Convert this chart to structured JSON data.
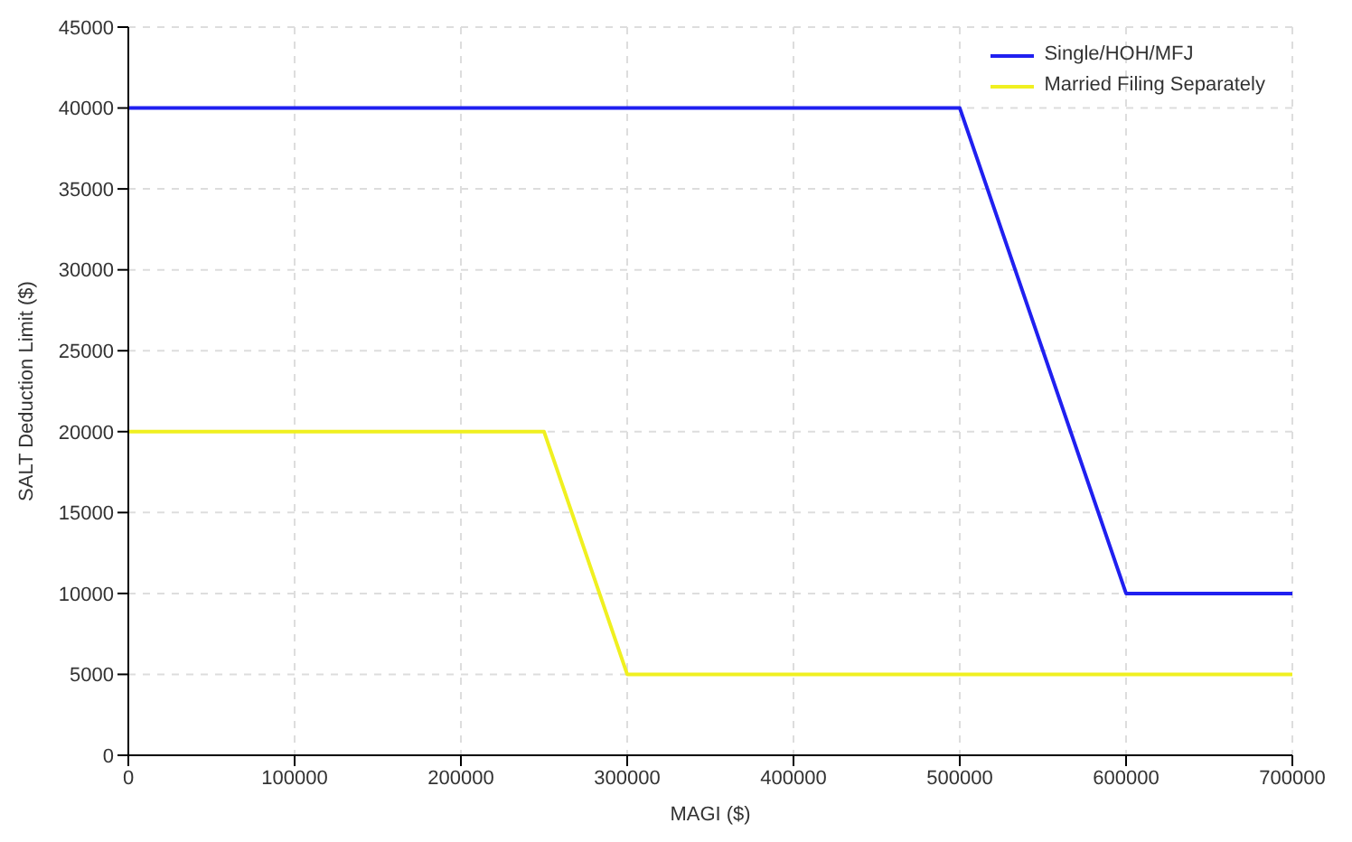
{
  "chart_data": {
    "type": "line",
    "xlabel": "MAGI ($)",
    "ylabel": "SALT Deduction Limit ($)",
    "xlim": [
      0,
      700000
    ],
    "xticks": [
      0,
      100000,
      200000,
      300000,
      400000,
      500000,
      600000,
      700000
    ],
    "ylim": [
      0,
      45000
    ],
    "yticks": [
      0,
      5000,
      10000,
      15000,
      20000,
      25000,
      30000,
      35000,
      40000,
      45000
    ],
    "grid": true,
    "legend": "top right",
    "marker": "none",
    "line_style": "solid",
    "series": [
      {
        "name": "Single/HOH/MFJ",
        "color": "#2020f0",
        "x": [
          0,
          500000,
          600000,
          700000
        ],
        "values": [
          40000,
          40000,
          10000,
          10000
        ]
      },
      {
        "name": "Married Filing Separately",
        "color": "#f0f020",
        "x": [
          0,
          250000,
          300000,
          700000
        ],
        "values": [
          20000,
          20000,
          5000,
          5000
        ]
      }
    ]
  }
}
